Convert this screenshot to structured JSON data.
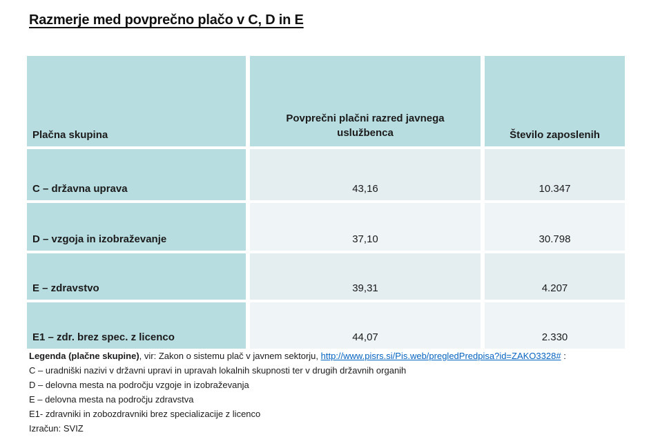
{
  "page": {
    "title": "Razmerje med povprečno plačo v C, D in E"
  },
  "table": {
    "columns": [
      "Plačna skupina",
      "Povprečni plačni razred javnega uslužbenca",
      "Število zaposlenih"
    ],
    "rows": [
      {
        "label": "C – državna uprava",
        "avg_pay_grade": "43,16",
        "employees": "10.347"
      },
      {
        "label": "D – vzgoja in izobraževanje",
        "avg_pay_grade": "37,10",
        "employees": "30.798"
      },
      {
        "label": "E – zdravstvo",
        "avg_pay_grade": "39,31",
        "employees": "4.207"
      },
      {
        "label": "E1 – zdr. brez spec. z licenco",
        "avg_pay_grade": "44,07",
        "employees": "2.330"
      }
    ]
  },
  "legend": {
    "bold_intro": "Legenda (plačne skupine)",
    "source_text": ", vir: Zakon o sistemu plač v javnem sektorju, ",
    "link": "http://www.pisrs.si/Pis.web/pregledPredpisa?id=ZAKO3328#",
    "suffix": " :",
    "lines": [
      "C – uradniški nazivi v državni upravi in upravah lokalnih skupnosti ter v drugih državnih organih",
      "D – delovna mesta na področju vzgoje in izobraževanja",
      "E – delovna mesta na področju zdravstva",
      "E1- zdravniki in zobozdravniki brez specializacije z licenco",
      "Izračun: SVIZ"
    ]
  },
  "colors": {
    "header_bg": "#b8dde1",
    "row_odd_bg": "#e4eef1",
    "row_even_bg": "#eff5f7",
    "link": "#0563c1"
  }
}
